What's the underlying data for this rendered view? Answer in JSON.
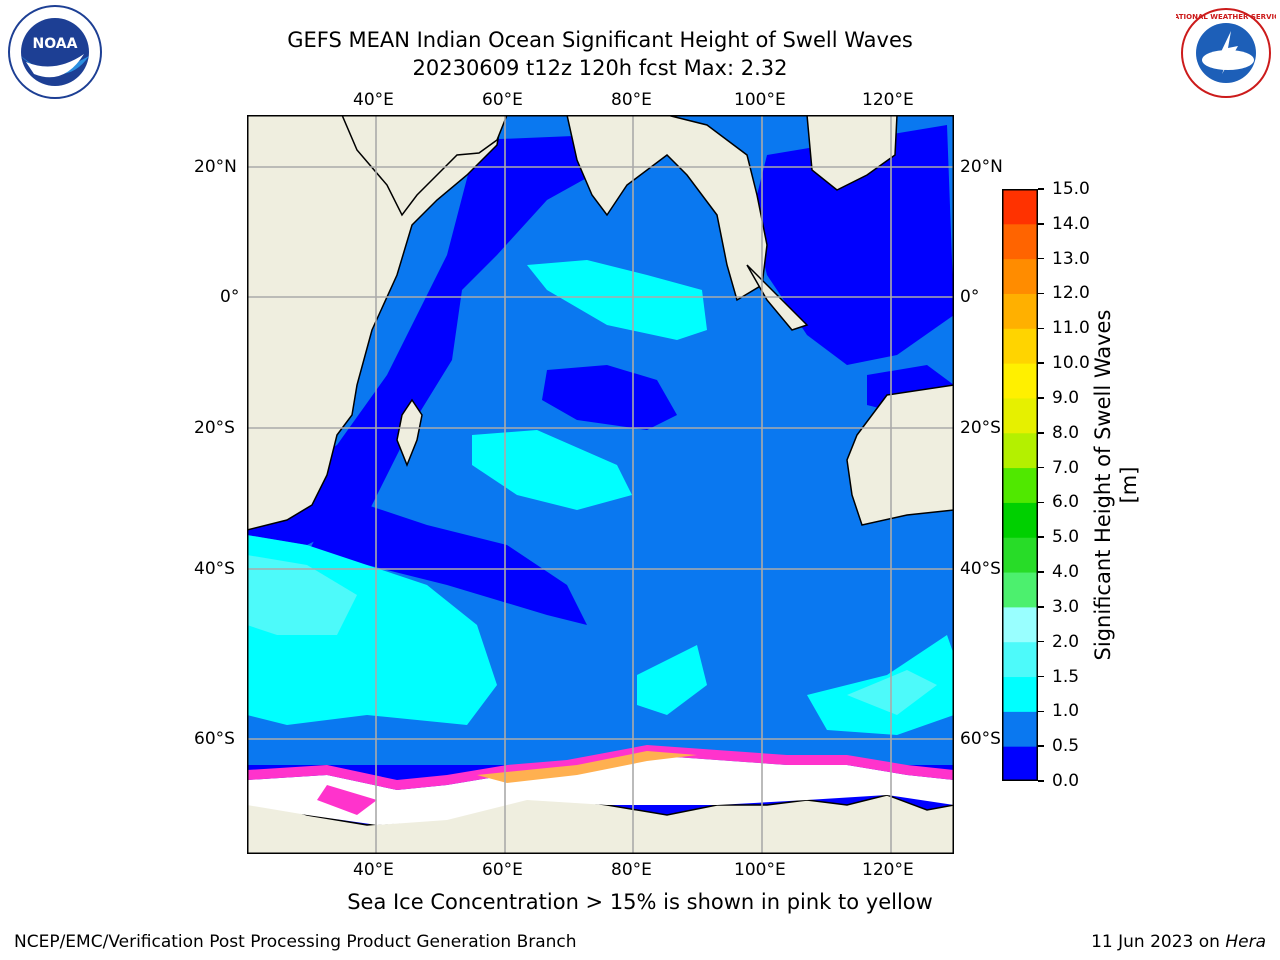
{
  "title": {
    "line1": "GEFS MEAN Indian Ocean Significant Height of Swell Waves",
    "line2": "20230609 t12z 120h fcst   Max: 2.32"
  },
  "logos": {
    "left": "noora-logo",
    "left_text": "NOAA",
    "right": "national-weather-service-logo",
    "right_text": "NATIONAL WEATHER SERVICE"
  },
  "map": {
    "lon_labels": [
      "40°E",
      "60°E",
      "80°E",
      "100°E",
      "120°E"
    ],
    "lat_labels": [
      "20°N",
      "0°",
      "20°S",
      "40°S",
      "60°S"
    ],
    "lon_range": [
      20,
      130
    ],
    "lat_range": [
      -80,
      27
    ],
    "land_color": "#efeedf",
    "ocean_base_color": "#0a78f0"
  },
  "colorbar": {
    "label": "Significant Height of Swell Waves [m]",
    "ticks": [
      "0.0",
      "0.5",
      "1.0",
      "1.5",
      "2.0",
      "3.0",
      "4.0",
      "5.0",
      "6.0",
      "7.0",
      "8.0",
      "9.0",
      "10.0",
      "11.0",
      "12.0",
      "13.0",
      "14.0",
      "15.0"
    ],
    "colors": [
      "#0000ff",
      "#0a78f0",
      "#00ffff",
      "#4dfafa",
      "#99ffff",
      "#4cf06e",
      "#28dc28",
      "#00d000",
      "#50e800",
      "#b4f000",
      "#e6f000",
      "#fff000",
      "#ffd400",
      "#ffb000",
      "#ff8c00",
      "#ff6400",
      "#ff3200",
      "#ff0000"
    ]
  },
  "note": "Sea Ice Concentration > 15% is shown in pink to yellow",
  "footer": {
    "left": "NCEP/EMC/Verification Post Processing Product Generation Branch",
    "right_prefix": "11 Jun 2023 on ",
    "right_host": "Hera"
  }
}
